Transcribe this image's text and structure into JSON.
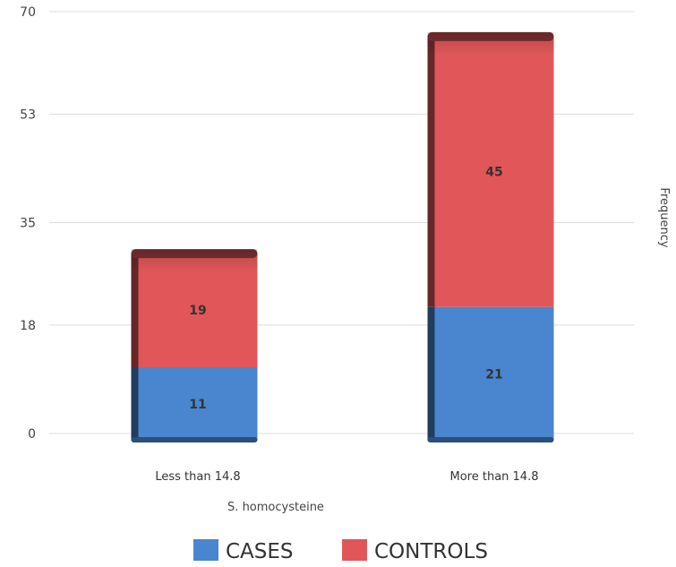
{
  "chart_data": {
    "type": "bar",
    "stacked": true,
    "title": "",
    "xlabel": "S. homocysteine",
    "ylabel": "Frequency",
    "yticks": [
      "0",
      "18",
      "35",
      "53",
      "70"
    ],
    "ylim": [
      0,
      70
    ],
    "categories": [
      "Less than 14.8",
      "More than 14.8"
    ],
    "series": [
      {
        "name": "CASES",
        "values": [
          11,
          21
        ],
        "color": "#4a86cf"
      },
      {
        "name": "CONTROLS",
        "values": [
          19,
          45
        ],
        "color": "#e15759"
      }
    ],
    "grid": true,
    "legend_position": "bottom"
  }
}
